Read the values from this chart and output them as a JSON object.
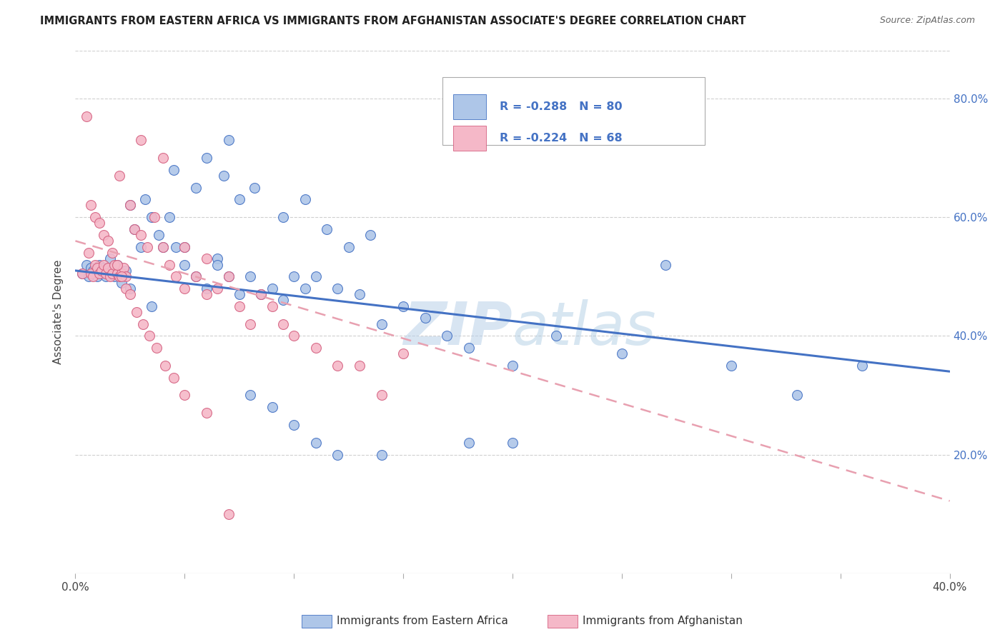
{
  "title": "IMMIGRANTS FROM EASTERN AFRICA VS IMMIGRANTS FROM AFGHANISTAN ASSOCIATE'S DEGREE CORRELATION CHART",
  "source": "Source: ZipAtlas.com",
  "ylabel": "Associate's Degree",
  "legend_r1": "R = -0.288",
  "legend_n1": "N = 80",
  "legend_r2": "R = -0.224",
  "legend_n2": "N = 68",
  "legend_label1": "Immigrants from Eastern Africa",
  "legend_label2": "Immigrants from Afghanistan",
  "blue_color": "#aec6e8",
  "pink_color": "#f5b8c8",
  "blue_line_color": "#4472c4",
  "pink_line_color": "#e8a0b0",
  "watermark": "ZIPatlas",
  "xlim": [
    0.0,
    0.4
  ],
  "ylim": [
    0.0,
    0.88
  ],
  "blue_line_x0": 0.0,
  "blue_line_y0": 0.51,
  "blue_line_x1": 0.4,
  "blue_line_y1": 0.34,
  "pink_line_x0": 0.0,
  "pink_line_y0": 0.56,
  "pink_line_x1": 0.21,
  "pink_line_y1": 0.33,
  "blue_scatter_x": [
    0.003,
    0.005,
    0.006,
    0.007,
    0.008,
    0.009,
    0.01,
    0.011,
    0.012,
    0.013,
    0.014,
    0.015,
    0.016,
    0.017,
    0.018,
    0.019,
    0.02,
    0.021,
    0.022,
    0.023,
    0.025,
    0.027,
    0.03,
    0.032,
    0.035,
    0.038,
    0.04,
    0.043,
    0.046,
    0.05,
    0.055,
    0.06,
    0.065,
    0.07,
    0.075,
    0.08,
    0.085,
    0.09,
    0.095,
    0.1,
    0.105,
    0.11,
    0.12,
    0.13,
    0.14,
    0.15,
    0.16,
    0.17,
    0.18,
    0.2,
    0.22,
    0.25,
    0.27,
    0.3,
    0.33,
    0.36,
    0.055,
    0.068,
    0.075,
    0.082,
    0.095,
    0.105,
    0.115,
    0.125,
    0.135,
    0.045,
    0.06,
    0.07,
    0.08,
    0.09,
    0.1,
    0.11,
    0.12,
    0.14,
    0.18,
    0.2,
    0.025,
    0.035,
    0.05,
    0.065
  ],
  "blue_scatter_y": [
    0.505,
    0.52,
    0.5,
    0.515,
    0.51,
    0.505,
    0.5,
    0.52,
    0.505,
    0.515,
    0.5,
    0.51,
    0.53,
    0.515,
    0.5,
    0.52,
    0.505,
    0.49,
    0.505,
    0.51,
    0.62,
    0.58,
    0.55,
    0.63,
    0.6,
    0.57,
    0.55,
    0.6,
    0.55,
    0.52,
    0.5,
    0.48,
    0.53,
    0.5,
    0.47,
    0.5,
    0.47,
    0.48,
    0.46,
    0.5,
    0.48,
    0.5,
    0.48,
    0.47,
    0.42,
    0.45,
    0.43,
    0.4,
    0.38,
    0.35,
    0.4,
    0.37,
    0.52,
    0.35,
    0.3,
    0.35,
    0.65,
    0.67,
    0.63,
    0.65,
    0.6,
    0.63,
    0.58,
    0.55,
    0.57,
    0.68,
    0.7,
    0.73,
    0.3,
    0.28,
    0.25,
    0.22,
    0.2,
    0.2,
    0.22,
    0.22,
    0.48,
    0.45,
    0.55,
    0.52
  ],
  "pink_scatter_x": [
    0.003,
    0.005,
    0.006,
    0.007,
    0.008,
    0.009,
    0.01,
    0.011,
    0.012,
    0.013,
    0.014,
    0.015,
    0.016,
    0.017,
    0.018,
    0.019,
    0.02,
    0.021,
    0.022,
    0.023,
    0.025,
    0.027,
    0.03,
    0.033,
    0.036,
    0.04,
    0.043,
    0.046,
    0.05,
    0.055,
    0.06,
    0.065,
    0.07,
    0.075,
    0.08,
    0.085,
    0.09,
    0.095,
    0.1,
    0.11,
    0.12,
    0.13,
    0.14,
    0.15,
    0.007,
    0.009,
    0.011,
    0.013,
    0.015,
    0.017,
    0.019,
    0.021,
    0.023,
    0.025,
    0.028,
    0.031,
    0.034,
    0.037,
    0.041,
    0.045,
    0.05,
    0.06,
    0.07,
    0.02,
    0.03,
    0.04,
    0.05,
    0.06
  ],
  "pink_scatter_y": [
    0.505,
    0.77,
    0.54,
    0.505,
    0.5,
    0.52,
    0.515,
    0.505,
    0.51,
    0.52,
    0.505,
    0.515,
    0.5,
    0.505,
    0.52,
    0.505,
    0.5,
    0.505,
    0.515,
    0.5,
    0.62,
    0.58,
    0.57,
    0.55,
    0.6,
    0.55,
    0.52,
    0.5,
    0.48,
    0.5,
    0.47,
    0.48,
    0.5,
    0.45,
    0.42,
    0.47,
    0.45,
    0.42,
    0.4,
    0.38,
    0.35,
    0.35,
    0.3,
    0.37,
    0.62,
    0.6,
    0.59,
    0.57,
    0.56,
    0.54,
    0.52,
    0.5,
    0.48,
    0.47,
    0.44,
    0.42,
    0.4,
    0.38,
    0.35,
    0.33,
    0.3,
    0.27,
    0.1,
    0.67,
    0.73,
    0.7,
    0.55,
    0.53
  ]
}
